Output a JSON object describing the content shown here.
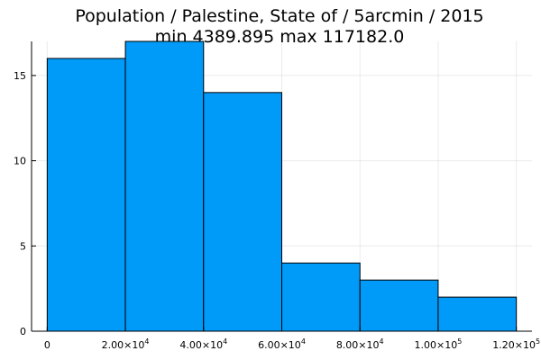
{
  "chart_data": {
    "type": "bar",
    "title_lines": [
      "Population / Palestine, State of / 5arcmin / 2015",
      "min 4389.895  max 117182.0"
    ],
    "xlabel": "",
    "ylabel": "",
    "bin_edges": [
      0,
      20000,
      40000,
      60000,
      80000,
      100000,
      120000
    ],
    "values": [
      16,
      17,
      14,
      4,
      3,
      2
    ],
    "xlim": [
      -4000,
      124000
    ],
    "ylim": [
      0,
      17
    ],
    "x_ticks": [
      {
        "value": 0,
        "mantissa": "0",
        "exponent": ""
      },
      {
        "value": 20000,
        "mantissa": "2.00×10",
        "exponent": "4"
      },
      {
        "value": 40000,
        "mantissa": "4.00×10",
        "exponent": "4"
      },
      {
        "value": 60000,
        "mantissa": "6.00×10",
        "exponent": "4"
      },
      {
        "value": 80000,
        "mantissa": "8.00×10",
        "exponent": "4"
      },
      {
        "value": 100000,
        "mantissa": "1.00×10",
        "exponent": "5"
      },
      {
        "value": 120000,
        "mantissa": "1.20×10",
        "exponent": "5"
      }
    ],
    "y_ticks": [
      {
        "value": 0,
        "label": "0"
      },
      {
        "value": 5,
        "label": "5"
      },
      {
        "value": 10,
        "label": "10"
      },
      {
        "value": 15,
        "label": "15"
      }
    ],
    "grid": true,
    "legend": "none",
    "bar_color": "#009af9",
    "edge_color": "#000000"
  }
}
